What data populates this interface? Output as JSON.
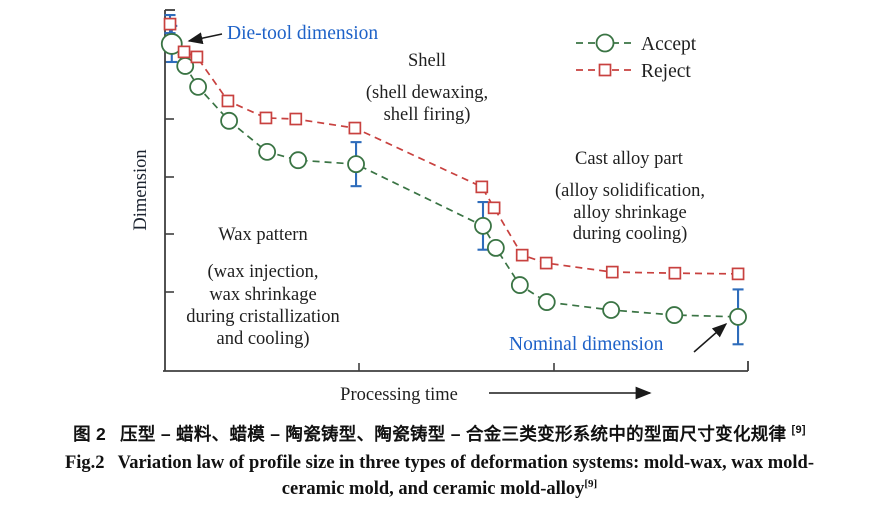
{
  "colors": {
    "accept": "#3a7444",
    "reject": "#c8413f",
    "error_bar": "#2e6cbb",
    "annotation_blue": "#1e62c8",
    "axis": "#3f3f3f",
    "text": "#1f1f1f"
  },
  "chart": {
    "y_axis_label": "Dimension",
    "x_axis_label": "Processing time",
    "legend": {
      "accept": "Accept",
      "reject": "Reject"
    },
    "stages": {
      "wax": {
        "title": "Wax pattern",
        "lines": [
          "(wax injection,",
          "wax shrinkage",
          "during cristallization",
          "and cooling)"
        ]
      },
      "shell": {
        "title": "Shell",
        "lines": [
          "(shell dewaxing,",
          "shell firing)"
        ]
      },
      "cast": {
        "title": "Cast alloy part",
        "lines": [
          "(alloy solidification,",
          "alloy shrinkage",
          "during cooling)"
        ]
      }
    },
    "annotations": {
      "die_tool": "Die-tool dimension",
      "nominal": "Nominal dimension"
    }
  },
  "chart_data": {
    "type": "line",
    "title": "",
    "xlabel": "Processing time",
    "ylabel": "Dimension",
    "axes_numeric": false,
    "x_range": [
      0,
      1
    ],
    "y_range": [
      0,
      1
    ],
    "stages_on_x": [
      "Wax pattern",
      "Shell",
      "Cast alloy part"
    ],
    "x_stage_tick_positions": [
      0.335,
      0.668
    ],
    "legend_position": "top-right",
    "grid": false,
    "series": [
      {
        "name": "Accept",
        "marker": "circle",
        "linestyle": "dashed",
        "color": "#3a7444",
        "points": [
          {
            "x": 0.015,
            "y": 0.906,
            "err": 0.05,
            "big": true
          },
          {
            "x": 0.038,
            "y": 0.845
          },
          {
            "x": 0.06,
            "y": 0.787
          },
          {
            "x": 0.113,
            "y": 0.693
          },
          {
            "x": 0.178,
            "y": 0.607
          },
          {
            "x": 0.231,
            "y": 0.584
          },
          {
            "x": 0.33,
            "y": 0.573,
            "err": 0.061
          },
          {
            "x": 0.547,
            "y": 0.402,
            "err": 0.066
          },
          {
            "x": 0.569,
            "y": 0.341
          },
          {
            "x": 0.61,
            "y": 0.238
          },
          {
            "x": 0.656,
            "y": 0.191
          },
          {
            "x": 0.766,
            "y": 0.169
          },
          {
            "x": 0.874,
            "y": 0.155
          },
          {
            "x": 0.983,
            "y": 0.15,
            "err": 0.076
          }
        ]
      },
      {
        "name": "Reject",
        "marker": "square",
        "linestyle": "dashed",
        "color": "#c8413f",
        "points": [
          {
            "x": 0.012,
            "y": 0.961,
            "err": 0.025
          },
          {
            "x": 0.036,
            "y": 0.884
          },
          {
            "x": 0.058,
            "y": 0.87
          },
          {
            "x": 0.111,
            "y": 0.748
          },
          {
            "x": 0.176,
            "y": 0.701
          },
          {
            "x": 0.227,
            "y": 0.698
          },
          {
            "x": 0.328,
            "y": 0.673
          },
          {
            "x": 0.545,
            "y": 0.51
          },
          {
            "x": 0.566,
            "y": 0.452
          },
          {
            "x": 0.614,
            "y": 0.321
          },
          {
            "x": 0.655,
            "y": 0.299
          },
          {
            "x": 0.768,
            "y": 0.274
          },
          {
            "x": 0.875,
            "y": 0.271
          },
          {
            "x": 0.983,
            "y": 0.269
          }
        ]
      }
    ]
  },
  "caption": {
    "zh_label": "图 2",
    "zh_text": "压型 – 蜡料、蜡模 – 陶瓷铸型、陶瓷铸型 – 合金三类变形系统中的型面尺寸变化规律 ",
    "zh_ref": "[9]",
    "en_label": "Fig.2",
    "en_line1": "Variation law of profile size in three types of deformation systems: mold-wax, wax mold-",
    "en_line2": "ceramic mold, and ceramic mold-alloy",
    "en_ref": "[9]"
  }
}
